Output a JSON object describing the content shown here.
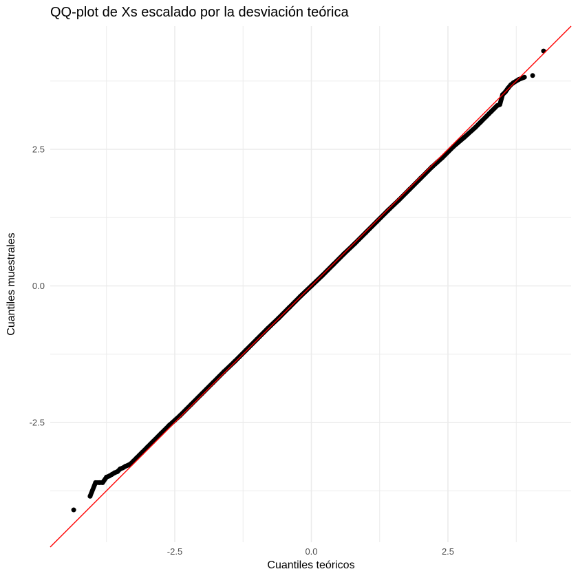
{
  "chart_data": {
    "type": "scatter",
    "title": "QQ-plot de Xs escalado por la desviación teórica",
    "xlabel": "Cuantiles teóricos",
    "ylabel": "Cuantiles muestrales",
    "xlim": [
      -4.7,
      4.7
    ],
    "ylim": [
      -4.7,
      4.7
    ],
    "x_ticks": [
      -2.5,
      0.0,
      2.5
    ],
    "x_tick_labels": [
      "-2.5",
      "0.0",
      "2.5"
    ],
    "y_ticks": [
      -2.5,
      0.0,
      2.5
    ],
    "y_tick_labels": [
      "-2.5",
      "0.0",
      "2.5"
    ],
    "grid": true,
    "reference_line": {
      "intercept": 0,
      "slope": 1,
      "color": "#ff0000"
    },
    "point_color": "#000000",
    "panel_background": "#ffffff",
    "grid_color": "#ebebeb",
    "points": {
      "x": [
        -4.35,
        -4.05,
        -3.95,
        -3.88,
        -3.82,
        -3.75,
        -3.7,
        -3.65,
        -3.6,
        -3.55,
        -3.5,
        -3.45,
        -3.4,
        -3.35,
        -3.3,
        -3.25,
        -3.2,
        -3.1,
        -3.0,
        -2.9,
        -2.75,
        -2.6,
        -2.4,
        -2.2,
        -2.0,
        -1.8,
        -1.6,
        -1.4,
        -1.2,
        -1.0,
        -0.8,
        -0.6,
        -0.4,
        -0.2,
        0.0,
        0.2,
        0.4,
        0.6,
        0.8,
        1.0,
        1.2,
        1.4,
        1.6,
        1.8,
        2.0,
        2.2,
        2.4,
        2.6,
        2.8,
        3.0,
        3.1,
        3.2,
        3.25,
        3.3,
        3.35,
        3.4,
        3.45,
        3.5,
        3.55,
        3.6,
        3.65,
        3.7,
        3.8,
        3.9,
        4.05,
        4.25
      ],
      "y": [
        -4.1,
        -3.85,
        -3.6,
        -3.6,
        -3.6,
        -3.5,
        -3.48,
        -3.45,
        -3.42,
        -3.4,
        -3.35,
        -3.33,
        -3.3,
        -3.28,
        -3.25,
        -3.2,
        -3.15,
        -3.05,
        -2.95,
        -2.85,
        -2.7,
        -2.55,
        -2.37,
        -2.17,
        -1.97,
        -1.77,
        -1.57,
        -1.38,
        -1.18,
        -0.98,
        -0.78,
        -0.59,
        -0.39,
        -0.19,
        0.0,
        0.19,
        0.39,
        0.59,
        0.78,
        0.98,
        1.18,
        1.38,
        1.57,
        1.77,
        1.97,
        2.17,
        2.35,
        2.55,
        2.72,
        2.9,
        3.0,
        3.1,
        3.15,
        3.2,
        3.25,
        3.3,
        3.32,
        3.5,
        3.55,
        3.62,
        3.68,
        3.72,
        3.78,
        3.82,
        3.85,
        4.3
      ]
    }
  }
}
